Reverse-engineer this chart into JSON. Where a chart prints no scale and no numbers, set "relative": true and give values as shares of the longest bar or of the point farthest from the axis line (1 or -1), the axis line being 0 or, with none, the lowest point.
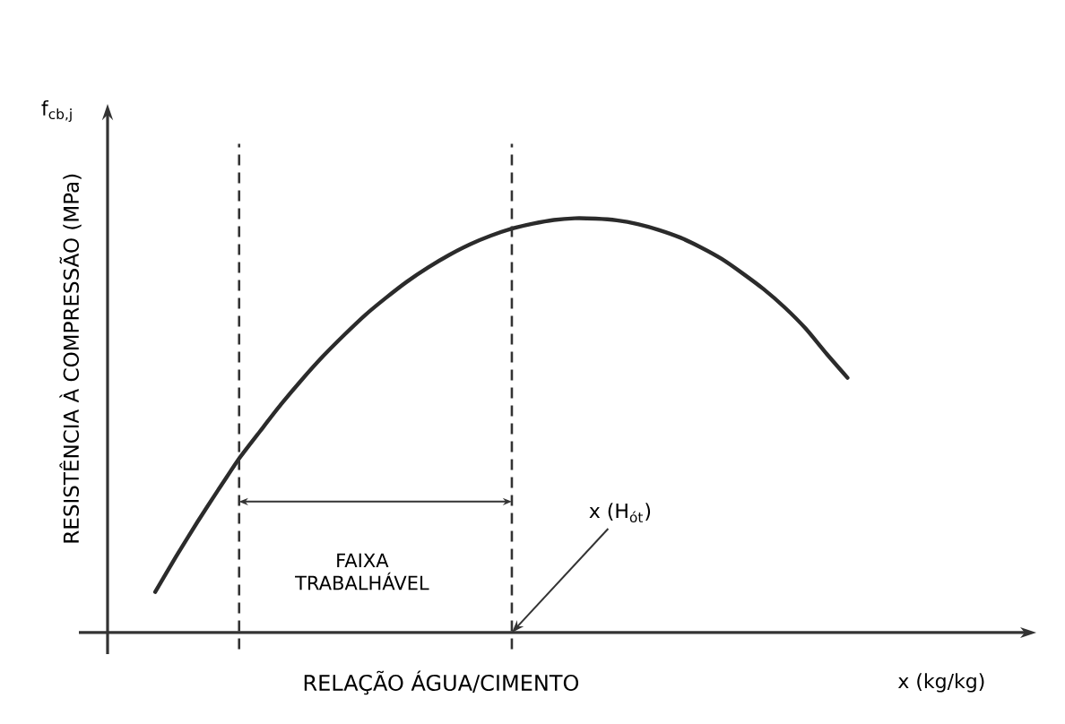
{
  "chart_data": {
    "type": "line",
    "relative": true,
    "xlabel": "RELAÇÃO ÁGUA/CIMENTO",
    "ylabel": "RESISTÊNCIA À COMPRESSÃO (MPa)",
    "annotations": [
      "f$_{cb,j}$",
      "x (kg/kg)",
      "FAIXA TRABALHÁVEL",
      "x (H$_{ót}$)"
    ],
    "categories": [
      null,
      null,
      null,
      null,
      null,
      null,
      null,
      null,
      null,
      null,
      null,
      null,
      null,
      null,
      null,
      null,
      null,
      null,
      null,
      null,
      null,
      null,
      null,
      null,
      null,
      null,
      null,
      null,
      null,
      null,
      null,
      null,
      null,
      null
    ],
    "values": [
      0.098,
      0.184,
      0.266,
      0.344,
      0.42,
      0.486,
      0.551,
      0.611,
      0.667,
      0.718,
      0.766,
      0.808,
      0.847,
      0.881,
      0.911,
      0.937,
      0.958,
      0.975,
      0.987,
      0.996,
      1.0,
      0.999,
      0.995,
      0.986,
      0.972,
      0.954,
      0.93,
      0.902,
      0.867,
      0.829,
      0.785,
      0.734,
      0.673,
      0.615
    ],
    "color": "#2b2b2b",
    "line_style": "solid"
  }
}
